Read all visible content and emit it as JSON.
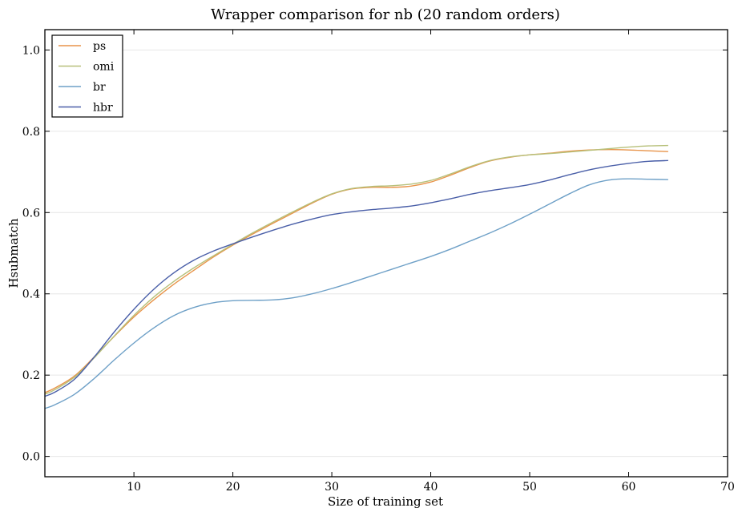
{
  "chart_data": {
    "type": "line",
    "title": "Wrapper comparison for nb (20 random orders)",
    "xlabel": "Size of training set",
    "ylabel": "Hsubmatch",
    "xlim": [
      1,
      70
    ],
    "ylim": [
      -0.05,
      1.05
    ],
    "xticks": [
      10,
      20,
      30,
      40,
      50,
      60,
      70
    ],
    "yticks": [
      0.0,
      0.2,
      0.4,
      0.6,
      0.8,
      1.0
    ],
    "ytick_labels": [
      "0.0",
      "0.2",
      "0.4",
      "0.6",
      "0.8",
      "1.0"
    ],
    "grid": "horizontal",
    "legend_position": "top-left",
    "series": [
      {
        "name": "ps",
        "color": "#e8944a",
        "x": [
          1,
          2,
          4,
          6,
          8,
          10,
          12,
          14,
          16,
          18,
          20,
          22,
          24,
          26,
          28,
          30,
          32,
          34,
          36,
          38,
          40,
          42,
          44,
          46,
          48,
          50,
          52,
          54,
          56,
          58,
          60,
          62,
          64
        ],
        "y": [
          0.157,
          0.168,
          0.198,
          0.245,
          0.295,
          0.343,
          0.385,
          0.423,
          0.457,
          0.49,
          0.52,
          0.547,
          0.573,
          0.598,
          0.623,
          0.645,
          0.658,
          0.662,
          0.662,
          0.665,
          0.675,
          0.692,
          0.711,
          0.727,
          0.736,
          0.742,
          0.746,
          0.751,
          0.754,
          0.755,
          0.754,
          0.752,
          0.75
        ]
      },
      {
        "name": "omi",
        "color": "#b7c07a",
        "x": [
          1,
          2,
          4,
          6,
          8,
          10,
          12,
          14,
          16,
          18,
          20,
          22,
          24,
          26,
          28,
          30,
          32,
          34,
          36,
          38,
          40,
          42,
          44,
          46,
          48,
          50,
          52,
          54,
          56,
          58,
          60,
          62,
          64
        ],
        "y": [
          0.153,
          0.164,
          0.195,
          0.243,
          0.296,
          0.347,
          0.392,
          0.43,
          0.463,
          0.493,
          0.522,
          0.55,
          0.576,
          0.601,
          0.625,
          0.646,
          0.659,
          0.664,
          0.666,
          0.67,
          0.679,
          0.695,
          0.713,
          0.728,
          0.737,
          0.742,
          0.745,
          0.749,
          0.753,
          0.757,
          0.761,
          0.764,
          0.765
        ]
      },
      {
        "name": "br",
        "color": "#6ea0c7",
        "x": [
          1,
          2,
          4,
          6,
          8,
          10,
          12,
          14,
          16,
          18,
          20,
          22,
          24,
          26,
          28,
          30,
          32,
          34,
          36,
          38,
          40,
          42,
          44,
          46,
          48,
          50,
          52,
          54,
          56,
          58,
          60,
          62,
          64
        ],
        "y": [
          0.118,
          0.127,
          0.153,
          0.192,
          0.237,
          0.279,
          0.316,
          0.346,
          0.366,
          0.378,
          0.383,
          0.384,
          0.385,
          0.39,
          0.4,
          0.413,
          0.428,
          0.444,
          0.46,
          0.476,
          0.492,
          0.51,
          0.53,
          0.55,
          0.572,
          0.596,
          0.621,
          0.646,
          0.668,
          0.68,
          0.683,
          0.682,
          0.681
        ]
      },
      {
        "name": "hbr",
        "color": "#4a5fa8",
        "x": [
          1,
          2,
          4,
          6,
          8,
          10,
          12,
          14,
          16,
          18,
          20,
          22,
          24,
          26,
          28,
          30,
          32,
          34,
          36,
          38,
          40,
          42,
          44,
          46,
          48,
          50,
          52,
          54,
          56,
          58,
          60,
          62,
          64
        ],
        "y": [
          0.148,
          0.158,
          0.19,
          0.245,
          0.306,
          0.362,
          0.411,
          0.451,
          0.482,
          0.505,
          0.523,
          0.54,
          0.556,
          0.571,
          0.584,
          0.595,
          0.602,
          0.607,
          0.611,
          0.616,
          0.624,
          0.634,
          0.645,
          0.654,
          0.661,
          0.669,
          0.68,
          0.693,
          0.705,
          0.714,
          0.721,
          0.726,
          0.728
        ]
      }
    ]
  }
}
